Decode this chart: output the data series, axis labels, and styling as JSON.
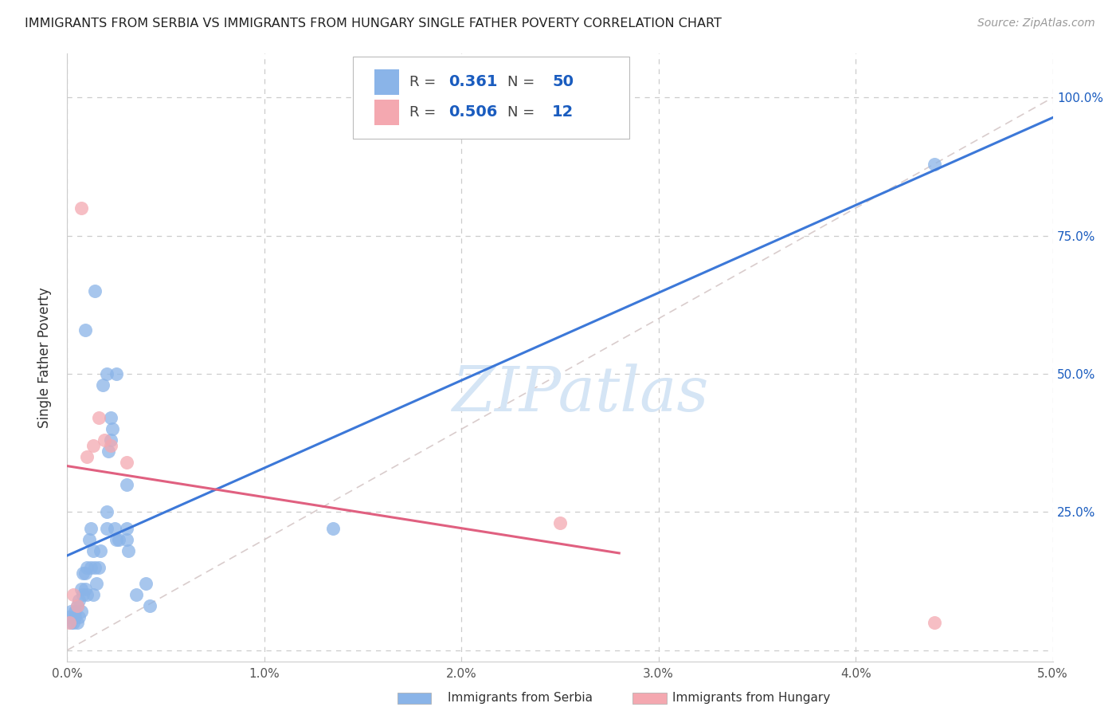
{
  "title": "IMMIGRANTS FROM SERBIA VS IMMIGRANTS FROM HUNGARY SINGLE FATHER POVERTY CORRELATION CHART",
  "source": "Source: ZipAtlas.com",
  "ylabel": "Single Father Poverty",
  "xlim": [
    0.0,
    0.05
  ],
  "ylim": [
    -0.02,
    1.08
  ],
  "xtick_labels": [
    "0.0%",
    "1.0%",
    "2.0%",
    "3.0%",
    "4.0%",
    "5.0%"
  ],
  "xtick_values": [
    0.0,
    0.01,
    0.02,
    0.03,
    0.04,
    0.05
  ],
  "ytick_labels": [
    "",
    "25.0%",
    "50.0%",
    "75.0%",
    "100.0%"
  ],
  "ytick_values": [
    0.0,
    0.25,
    0.5,
    0.75,
    1.0
  ],
  "legend_label_serbia": "Immigrants from Serbia",
  "legend_label_hungary": "Immigrants from Hungary",
  "R_serbia": "0.361",
  "N_serbia": "50",
  "R_hungary": "0.506",
  "N_hungary": "12",
  "color_serbia": "#8ab4e8",
  "color_hungary": "#f4a8b0",
  "color_serbia_line": "#3c78d8",
  "color_hungary_line": "#e06080",
  "color_text_blue": "#1a5cbf",
  "watermark_color": "#d5e5f5",
  "serbia_x": [
    0.0001,
    0.0002,
    0.0002,
    0.0003,
    0.0004,
    0.0004,
    0.0005,
    0.0005,
    0.0006,
    0.0006,
    0.0007,
    0.0007,
    0.0008,
    0.0008,
    0.0009,
    0.0009,
    0.001,
    0.001,
    0.0011,
    0.0012,
    0.0012,
    0.0013,
    0.0013,
    0.0014,
    0.0015,
    0.0016,
    0.0017,
    0.002,
    0.002,
    0.0021,
    0.0022,
    0.0023,
    0.0024,
    0.0025,
    0.0026,
    0.003,
    0.003,
    0.0031,
    0.0035,
    0.004,
    0.0009,
    0.0014,
    0.0018,
    0.002,
    0.0022,
    0.0025,
    0.003,
    0.0135,
    0.0042,
    0.044
  ],
  "serbia_y": [
    0.06,
    0.07,
    0.05,
    0.05,
    0.07,
    0.06,
    0.08,
    0.05,
    0.09,
    0.06,
    0.11,
    0.07,
    0.14,
    0.1,
    0.14,
    0.11,
    0.15,
    0.1,
    0.2,
    0.22,
    0.15,
    0.18,
    0.1,
    0.15,
    0.12,
    0.15,
    0.18,
    0.25,
    0.22,
    0.36,
    0.38,
    0.4,
    0.22,
    0.5,
    0.2,
    0.2,
    0.22,
    0.18,
    0.1,
    0.12,
    0.58,
    0.65,
    0.48,
    0.5,
    0.42,
    0.2,
    0.3,
    0.22,
    0.08,
    0.88
  ],
  "hungary_x": [
    0.0001,
    0.0003,
    0.0005,
    0.0007,
    0.001,
    0.0013,
    0.0016,
    0.0019,
    0.0022,
    0.003,
    0.025,
    0.044
  ],
  "hungary_y": [
    0.05,
    0.1,
    0.08,
    0.8,
    0.35,
    0.37,
    0.42,
    0.38,
    0.37,
    0.34,
    0.23,
    0.05
  ]
}
